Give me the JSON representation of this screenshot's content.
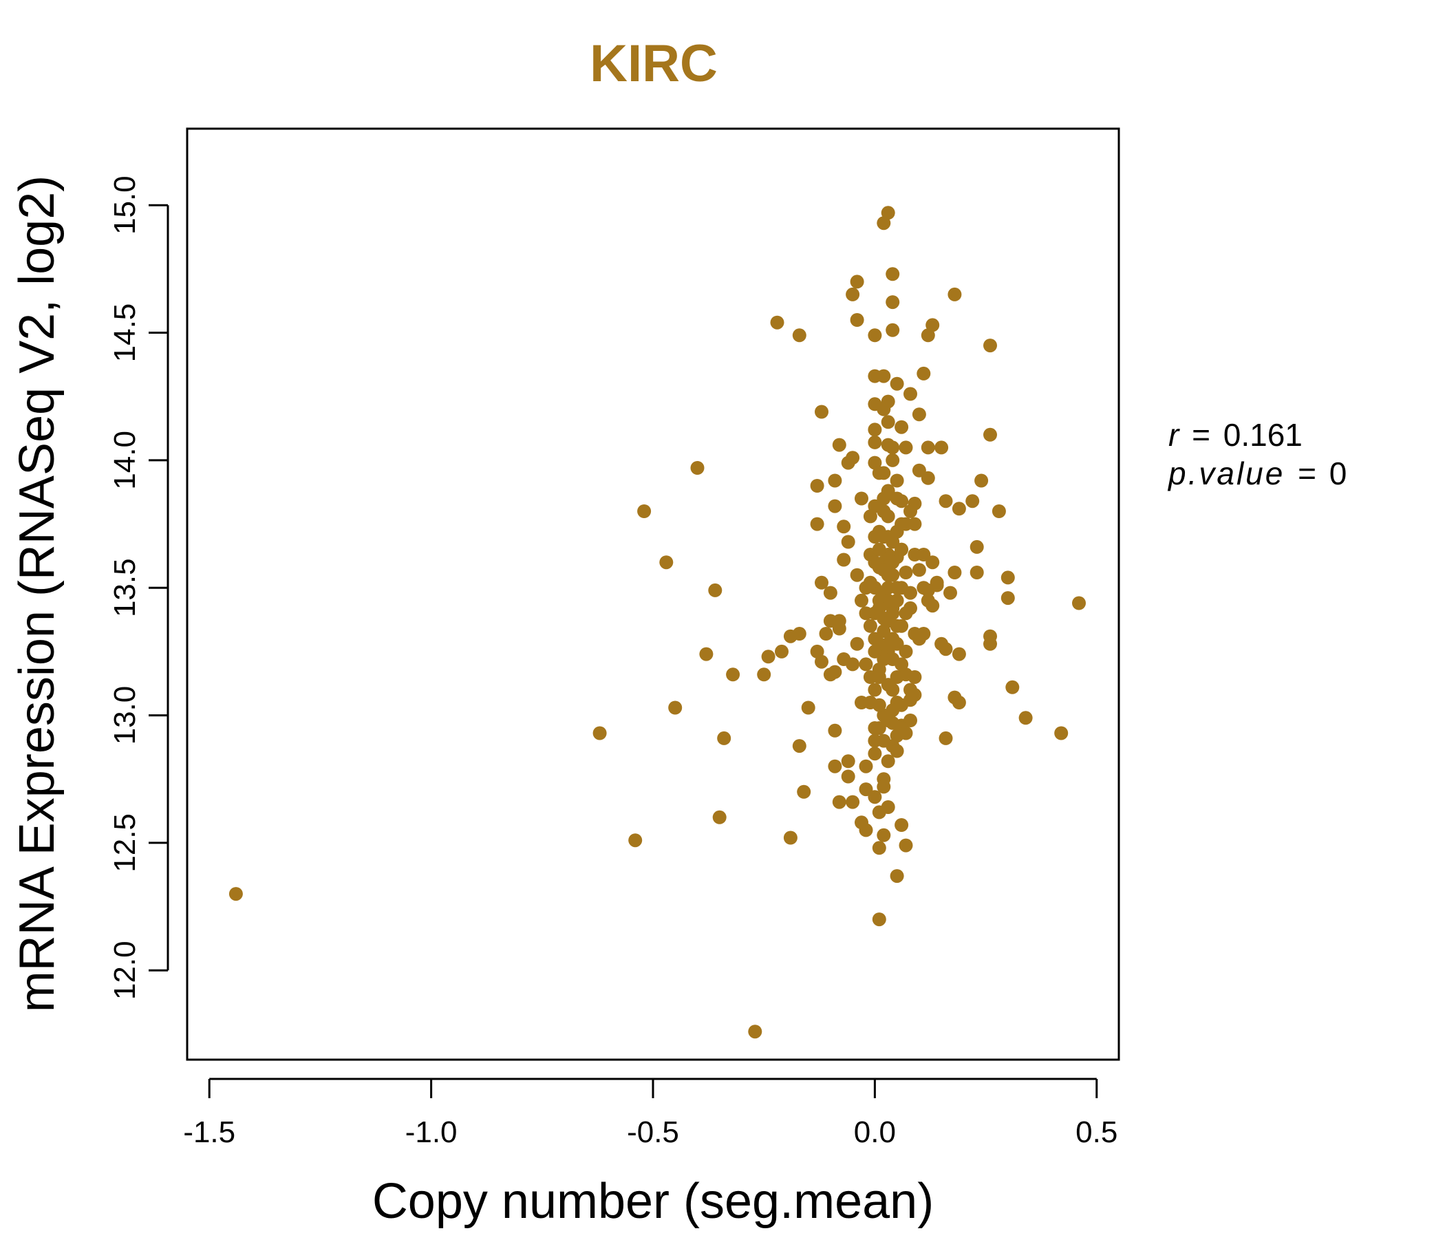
{
  "chart_data": {
    "type": "scatter",
    "title": "KIRC",
    "xlabel": "Copy number (seg.mean)",
    "ylabel": "mRNA Expression (RNASeq V2, log2)",
    "xlim": [
      -1.55,
      0.55
    ],
    "ylim": [
      11.65,
      15.3
    ],
    "xticks": [
      "-1.5",
      "-1.0",
      "-0.5",
      "0.0",
      "0.5"
    ],
    "yticks": [
      "12.0",
      "12.5",
      "13.0",
      "13.5",
      "14.0",
      "14.5",
      "15.0"
    ],
    "grid": false,
    "annotations": {
      "r_label": "r",
      "r_value": "0.161",
      "p_label": "p.value",
      "p_value": "0"
    },
    "colors": {
      "point": "#A5761C",
      "title": "#A5761C",
      "axis": "#000000"
    },
    "points": [
      [
        -1.44,
        12.3
      ],
      [
        -0.27,
        11.76
      ],
      [
        -0.62,
        12.93
      ],
      [
        -0.54,
        12.51
      ],
      [
        -0.52,
        13.8
      ],
      [
        -0.47,
        13.6
      ],
      [
        -0.45,
        13.03
      ],
      [
        -0.4,
        13.97
      ],
      [
        -0.38,
        13.24
      ],
      [
        -0.36,
        13.49
      ],
      [
        -0.35,
        12.6
      ],
      [
        -0.34,
        12.91
      ],
      [
        -0.32,
        13.16
      ],
      [
        -0.25,
        13.16
      ],
      [
        -0.24,
        13.23
      ],
      [
        -0.22,
        14.54
      ],
      [
        -0.21,
        13.25
      ],
      [
        -0.19,
        13.31
      ],
      [
        -0.19,
        12.52
      ],
      [
        -0.17,
        14.49
      ],
      [
        -0.17,
        13.32
      ],
      [
        -0.17,
        12.88
      ],
      [
        -0.16,
        12.7
      ],
      [
        -0.15,
        13.03
      ],
      [
        -0.13,
        13.9
      ],
      [
        -0.13,
        13.75
      ],
      [
        -0.12,
        13.52
      ],
      [
        -0.12,
        14.19
      ],
      [
        -0.13,
        13.25
      ],
      [
        -0.12,
        13.21
      ],
      [
        -0.11,
        13.32
      ],
      [
        -0.1,
        13.37
      ],
      [
        -0.1,
        13.48
      ],
      [
        -0.09,
        13.92
      ],
      [
        -0.09,
        13.82
      ],
      [
        -0.09,
        13.17
      ],
      [
        -0.09,
        12.94
      ],
      [
        -0.09,
        12.8
      ],
      [
        -0.08,
        12.66
      ],
      [
        -0.08,
        13.37
      ],
      [
        -0.07,
        13.74
      ],
      [
        -0.07,
        13.61
      ],
      [
        -0.07,
        13.22
      ],
      [
        -0.06,
        13.68
      ],
      [
        -0.06,
        12.82
      ],
      [
        -0.06,
        12.76
      ],
      [
        -0.06,
        13.99
      ],
      [
        -0.05,
        14.01
      ],
      [
        -0.05,
        13.2
      ],
      [
        -0.05,
        12.66
      ],
      [
        -0.04,
        14.7
      ],
      [
        -0.04,
        14.55
      ],
      [
        -0.04,
        13.55
      ],
      [
        -0.04,
        13.28
      ],
      [
        -0.03,
        13.85
      ],
      [
        -0.03,
        13.45
      ],
      [
        -0.03,
        12.58
      ],
      [
        -0.03,
        13.05
      ],
      [
        -0.02,
        12.55
      ],
      [
        -0.02,
        12.71
      ],
      [
        -0.08,
        14.06
      ],
      [
        -0.05,
        14.65
      ],
      [
        -0.1,
        13.16
      ],
      [
        -0.08,
        13.34
      ],
      [
        -0.02,
        12.8
      ],
      [
        0.0,
        14.33
      ],
      [
        0.0,
        14.49
      ],
      [
        0.0,
        14.22
      ],
      [
        0.0,
        14.12
      ],
      [
        0.0,
        14.07
      ],
      [
        0.0,
        13.99
      ],
      [
        0.0,
        13.5
      ],
      [
        0.0,
        13.3
      ],
      [
        0.0,
        13.1
      ],
      [
        0.0,
        12.9
      ],
      [
        0.0,
        12.85
      ],
      [
        0.0,
        12.68
      ],
      [
        0.01,
        12.48
      ],
      [
        0.01,
        12.2
      ],
      [
        0.01,
        12.62
      ],
      [
        0.01,
        13.95
      ],
      [
        0.01,
        13.72
      ],
      [
        0.01,
        13.45
      ],
      [
        0.01,
        13.18
      ],
      [
        0.01,
        12.95
      ],
      [
        0.02,
        14.93
      ],
      [
        0.02,
        14.33
      ],
      [
        0.02,
        14.2
      ],
      [
        0.02,
        13.85
      ],
      [
        0.02,
        13.6
      ],
      [
        0.02,
        13.38
      ],
      [
        0.02,
        13.0
      ],
      [
        0.02,
        12.75
      ],
      [
        0.02,
        12.53
      ],
      [
        0.03,
        14.97
      ],
      [
        0.03,
        14.23
      ],
      [
        0.03,
        14.06
      ],
      [
        0.03,
        13.78
      ],
      [
        0.03,
        13.55
      ],
      [
        0.03,
        13.25
      ],
      [
        0.03,
        12.98
      ],
      [
        0.03,
        12.64
      ],
      [
        0.04,
        14.73
      ],
      [
        0.04,
        14.51
      ],
      [
        0.04,
        14.62
      ],
      [
        0.04,
        14.0
      ],
      [
        0.04,
        13.68
      ],
      [
        0.04,
        13.42
      ],
      [
        0.04,
        13.1
      ],
      [
        0.04,
        12.88
      ],
      [
        0.05,
        14.3
      ],
      [
        0.05,
        13.92
      ],
      [
        0.05,
        13.62
      ],
      [
        0.05,
        13.35
      ],
      [
        0.05,
        13.05
      ],
      [
        0.05,
        12.86
      ],
      [
        0.05,
        12.37
      ],
      [
        0.06,
        14.13
      ],
      [
        0.06,
        13.84
      ],
      [
        0.06,
        13.5
      ],
      [
        0.06,
        13.2
      ],
      [
        0.06,
        12.96
      ],
      [
        0.06,
        12.57
      ],
      [
        0.07,
        14.05
      ],
      [
        0.07,
        13.75
      ],
      [
        0.07,
        13.4
      ],
      [
        0.07,
        13.16
      ],
      [
        0.07,
        12.49
      ],
      [
        0.08,
        14.26
      ],
      [
        0.08,
        13.8
      ],
      [
        0.08,
        13.48
      ],
      [
        0.08,
        13.06
      ],
      [
        0.09,
        13.83
      ],
      [
        0.09,
        13.63
      ],
      [
        0.09,
        13.32
      ],
      [
        0.1,
        14.18
      ],
      [
        0.1,
        13.96
      ],
      [
        0.1,
        13.57
      ],
      [
        0.11,
        14.34
      ],
      [
        0.11,
        13.63
      ],
      [
        0.11,
        13.32
      ],
      [
        0.12,
        14.49
      ],
      [
        0.12,
        14.05
      ],
      [
        0.12,
        13.93
      ],
      [
        0.12,
        13.49
      ],
      [
        0.13,
        14.53
      ],
      [
        0.13,
        13.43
      ],
      [
        0.14,
        13.51
      ],
      [
        0.15,
        14.05
      ],
      [
        0.15,
        13.28
      ],
      [
        0.16,
        13.84
      ],
      [
        0.16,
        13.26
      ],
      [
        0.16,
        12.91
      ],
      [
        0.17,
        13.48
      ],
      [
        0.18,
        14.65
      ],
      [
        0.18,
        13.56
      ],
      [
        0.18,
        13.07
      ],
      [
        0.19,
        13.81
      ],
      [
        0.19,
        13.24
      ],
      [
        0.19,
        13.05
      ],
      [
        0.22,
        13.84
      ],
      [
        0.23,
        13.56
      ],
      [
        0.23,
        13.66
      ],
      [
        0.24,
        13.92
      ],
      [
        0.26,
        14.45
      ],
      [
        0.26,
        14.1
      ],
      [
        0.26,
        13.31
      ],
      [
        0.26,
        13.28
      ],
      [
        0.28,
        13.8
      ],
      [
        0.3,
        13.54
      ],
      [
        0.3,
        13.46
      ],
      [
        0.31,
        13.11
      ],
      [
        0.34,
        12.99
      ],
      [
        0.42,
        12.93
      ],
      [
        0.46,
        13.44
      ],
      [
        -0.01,
        13.15
      ],
      [
        -0.01,
        13.63
      ],
      [
        -0.01,
        13.35
      ],
      [
        0.0,
        13.7
      ],
      [
        0.01,
        13.58
      ],
      [
        0.02,
        13.7
      ],
      [
        0.03,
        13.88
      ],
      [
        0.01,
        13.28
      ],
      [
        0.02,
        13.47
      ],
      [
        0.03,
        13.37
      ],
      [
        0.04,
        13.55
      ],
      [
        0.05,
        13.72
      ],
      [
        0.03,
        13.63
      ],
      [
        0.04,
        13.3
      ],
      [
        0.05,
        13.45
      ],
      [
        0.02,
        13.22
      ],
      [
        0.03,
        13.12
      ],
      [
        0.04,
        13.22
      ],
      [
        0.01,
        13.04
      ],
      [
        0.02,
        12.9
      ],
      [
        0.04,
        12.97
      ],
      [
        0.05,
        13.15
      ],
      [
        0.06,
        13.35
      ],
      [
        0.07,
        13.56
      ],
      [
        0.06,
        13.65
      ],
      [
        0.08,
        13.42
      ],
      [
        0.09,
        13.15
      ],
      [
        0.07,
        13.25
      ],
      [
        0.08,
        12.98
      ],
      [
        0.06,
        13.04
      ],
      [
        0.0,
        13.6
      ],
      [
        -0.01,
        13.78
      ],
      [
        0.0,
        13.82
      ],
      [
        -0.02,
        13.5
      ],
      [
        -0.02,
        13.4
      ],
      [
        -0.01,
        13.52
      ],
      [
        0.0,
        13.25
      ],
      [
        -0.02,
        13.2
      ],
      [
        -0.01,
        13.05
      ],
      [
        0.0,
        12.95
      ],
      [
        0.02,
        13.33
      ],
      [
        0.03,
        13.45
      ],
      [
        0.01,
        13.65
      ],
      [
        0.02,
        13.95
      ],
      [
        0.03,
        14.15
      ],
      [
        0.04,
        14.05
      ],
      [
        0.05,
        13.85
      ],
      [
        0.06,
        13.75
      ],
      [
        0.02,
        13.8
      ],
      [
        0.03,
        13.7
      ],
      [
        0.05,
        13.28
      ],
      [
        0.04,
        13.02
      ],
      [
        0.05,
        12.92
      ],
      [
        0.03,
        12.82
      ],
      [
        0.02,
        12.72
      ],
      [
        0.06,
        12.95
      ],
      [
        0.07,
        12.93
      ],
      [
        0.08,
        13.1
      ],
      [
        0.09,
        13.08
      ],
      [
        0.1,
        13.3
      ],
      [
        0.11,
        13.5
      ],
      [
        0.12,
        13.45
      ],
      [
        0.14,
        13.52
      ],
      [
        0.13,
        13.6
      ],
      [
        0.09,
        13.75
      ],
      [
        0.0,
        13.4
      ],
      [
        0.01,
        13.42
      ],
      [
        0.02,
        13.38
      ],
      [
        0.03,
        13.5
      ],
      [
        0.04,
        13.4
      ],
      [
        0.02,
        13.57
      ],
      [
        0.01,
        13.15
      ],
      [
        0.03,
        13.28
      ],
      [
        0.04,
        13.6
      ],
      [
        0.05,
        13.5
      ]
    ]
  }
}
